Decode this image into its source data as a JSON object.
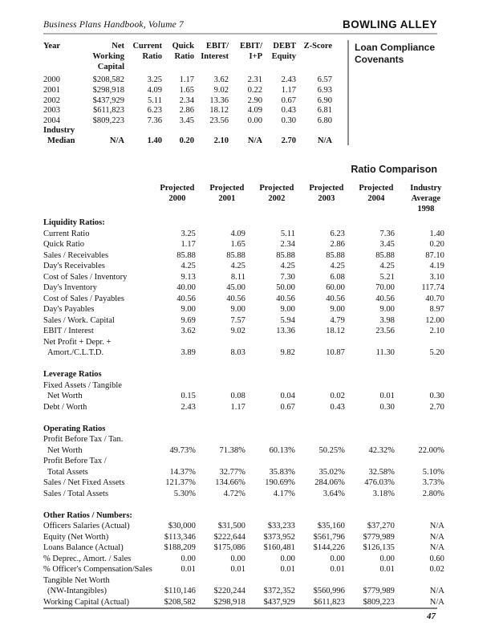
{
  "page": {
    "running_head_left": "Business Plans Handbook, Volume 7",
    "running_head_right": "BOWLING ALLEY",
    "margin_note_covenants": "Loan Compliance Covenants",
    "margin_note_ratio": "Ratio Comparison",
    "page_number": "47"
  },
  "covenant_table": {
    "headers": [
      {
        "lines": [
          "Year"
        ]
      },
      {
        "lines": [
          "Net",
          "Working",
          "Capital"
        ]
      },
      {
        "lines": [
          "Current",
          "Ratio"
        ]
      },
      {
        "lines": [
          "Quick",
          "Ratio"
        ]
      },
      {
        "lines": [
          "EBIT/",
          "Interest"
        ]
      },
      {
        "lines": [
          "EBIT/",
          "I+P"
        ]
      },
      {
        "lines": [
          "DEBT",
          "Equity"
        ]
      },
      {
        "lines": [
          "Z-Score"
        ]
      }
    ],
    "rows": [
      {
        "label": "2000",
        "values": [
          "$208,582",
          "3.25",
          "1.17",
          "3.62",
          "2.31",
          "2.43",
          "6.57"
        ]
      },
      {
        "label": "2001",
        "values": [
          "$298,918",
          "4.09",
          "1.65",
          "9.02",
          "0.22",
          "1.17",
          "6.93"
        ]
      },
      {
        "label": "2002",
        "values": [
          "$437,929",
          "5.11",
          "2.34",
          "13.36",
          "2.90",
          "0.67",
          "6.90"
        ]
      },
      {
        "label": "2003",
        "values": [
          "$611,823",
          "6.23",
          "2.86",
          "18.12",
          "4.09",
          "0.43",
          "6.81"
        ]
      },
      {
        "label": "2004",
        "values": [
          "$809,223",
          "7.36",
          "3.45",
          "23.56",
          "0.00",
          "0.30",
          "6.80"
        ]
      },
      {
        "label": "Industry",
        "values": [
          "",
          "",
          "",
          "",
          "",
          "",
          ""
        ],
        "bold": true
      },
      {
        "label": "Median",
        "values": [
          "N/A",
          "1.40",
          "0.20",
          "2.10",
          "N/A",
          "2.70",
          "N/A"
        ],
        "bold": true,
        "indent": true
      }
    ]
  },
  "ratio_table": {
    "col_headers": [
      {
        "lines": [
          "Projected",
          "2000"
        ]
      },
      {
        "lines": [
          "Projected",
          "2001"
        ]
      },
      {
        "lines": [
          "Projected",
          "2002"
        ]
      },
      {
        "lines": [
          "Projected",
          "2003"
        ]
      },
      {
        "lines": [
          "Projected",
          "2004"
        ]
      },
      {
        "lines": [
          "Industry",
          "Average",
          "1998"
        ]
      }
    ],
    "sections": [
      {
        "title": "Liquidity Ratios:",
        "rows": [
          {
            "label_lines": [
              "Current Ratio"
            ],
            "values": [
              "3.25",
              "4.09",
              "5.11",
              "6.23",
              "7.36",
              "1.40"
            ]
          },
          {
            "label_lines": [
              "Quick Ratio"
            ],
            "values": [
              "1.17",
              "1.65",
              "2.34",
              "2.86",
              "3.45",
              "0.20"
            ]
          },
          {
            "label_lines": [
              "Sales / Receivables"
            ],
            "values": [
              "85.88",
              "85.88",
              "85.88",
              "85.88",
              "85.88",
              "87.10"
            ]
          },
          {
            "label_lines": [
              "Day's Receivables"
            ],
            "values": [
              "4.25",
              "4.25",
              "4.25",
              "4.25",
              "4.25",
              "4.19"
            ]
          },
          {
            "label_lines": [
              "Cost of Sales / Inventory"
            ],
            "values": [
              "9.13",
              "8.11",
              "7.30",
              "6.08",
              "5.21",
              "3.10"
            ]
          },
          {
            "label_lines": [
              "Day's Inventory"
            ],
            "values": [
              "40.00",
              "45.00",
              "50.00",
              "60.00",
              "70.00",
              "117.74"
            ]
          },
          {
            "label_lines": [
              "Cost of Sales / Payables"
            ],
            "values": [
              "40.56",
              "40.56",
              "40.56",
              "40.56",
              "40.56",
              "40.70"
            ]
          },
          {
            "label_lines": [
              "Day's Payables"
            ],
            "values": [
              "9.00",
              "9.00",
              "9.00",
              "9.00",
              "9.00",
              "8.97"
            ]
          },
          {
            "label_lines": [
              "Sales / Work. Capital"
            ],
            "values": [
              "9.69",
              "7.57",
              "5.94",
              "4.79",
              "3.98",
              "12.00"
            ]
          },
          {
            "label_lines": [
              "EBIT / Interest"
            ],
            "values": [
              "3.62",
              "9.02",
              "13.36",
              "18.12",
              "23.56",
              "2.10"
            ]
          },
          {
            "label_lines": [
              "Net Profit + Depr. +",
              "Amort./C.L.T.D."
            ],
            "values": [
              "3.89",
              "8.03",
              "9.82",
              "10.87",
              "11.30",
              "5.20"
            ]
          }
        ]
      },
      {
        "title": "Leverage Ratios",
        "rows": [
          {
            "label_lines": [
              "Fixed Assets / Tangible",
              "Net Worth"
            ],
            "values": [
              "0.15",
              "0.08",
              "0.04",
              "0.02",
              "0.01",
              "0.30"
            ]
          },
          {
            "label_lines": [
              "Debt / Worth"
            ],
            "values": [
              "2.43",
              "1.17",
              "0.67",
              "0.43",
              "0.30",
              "2.70"
            ]
          }
        ]
      },
      {
        "title": "Operating Ratios",
        "rows": [
          {
            "label_lines": [
              "Profit Before Tax / Tan.",
              "Net Worth"
            ],
            "values": [
              "49.73%",
              "71.38%",
              "60.13%",
              "50.25%",
              "42.32%",
              "22.00%"
            ]
          },
          {
            "label_lines": [
              "Profit Before Tax /",
              "Total Assets"
            ],
            "values": [
              "14.37%",
              "32.77%",
              "35.83%",
              "35.02%",
              "32.58%",
              "5.10%"
            ]
          },
          {
            "label_lines": [
              "Sales / Net Fixed Assets"
            ],
            "values": [
              "121.37%",
              "134.66%",
              "190.69%",
              "284.06%",
              "476.03%",
              "3.73%"
            ]
          },
          {
            "label_lines": [
              "Sales / Total Assets"
            ],
            "values": [
              "5.30%",
              "4.72%",
              "4.17%",
              "3.64%",
              "3.18%",
              "2.80%"
            ]
          }
        ]
      },
      {
        "title": "Other Ratios / Numbers:",
        "rows": [
          {
            "label_lines": [
              "Officers Salaries (Actual)"
            ],
            "values": [
              "$30,000",
              "$31,500",
              "$33,233",
              "$35,160",
              "$37,270",
              "N/A"
            ]
          },
          {
            "label_lines": [
              "Equity (Net Worth)"
            ],
            "values": [
              "$113,346",
              "$222,644",
              "$373,952",
              "$561,796",
              "$779,989",
              "N/A"
            ]
          },
          {
            "label_lines": [
              "Loans Balance (Actual)"
            ],
            "values": [
              "$188,209",
              "$175,086",
              "$160,481",
              "$144,226",
              "$126,135",
              "N/A"
            ]
          },
          {
            "label_lines": [
              "% Deprec., Amort. / Sales"
            ],
            "values": [
              "0.00",
              "0.00",
              "0.00",
              "0.00",
              "0.00",
              "0.60"
            ]
          },
          {
            "label_lines": [
              "% Officer's Compensation/Sales"
            ],
            "values": [
              "0.01",
              "0.01",
              "0.01",
              "0.01",
              "0.01",
              "0.02"
            ]
          },
          {
            "label_lines": [
              "Tangible Net Worth",
              "(NW-Intangibles)"
            ],
            "values": [
              "$110,146",
              "$220,244",
              "$372,352",
              "$560,996",
              "$779,989",
              "N/A"
            ]
          },
          {
            "label_lines": [
              "Working Capital (Actual)"
            ],
            "values": [
              "$208,582",
              "$298,918",
              "$437,929",
              "$611,823",
              "$809,223",
              "N/A"
            ]
          }
        ]
      }
    ]
  }
}
